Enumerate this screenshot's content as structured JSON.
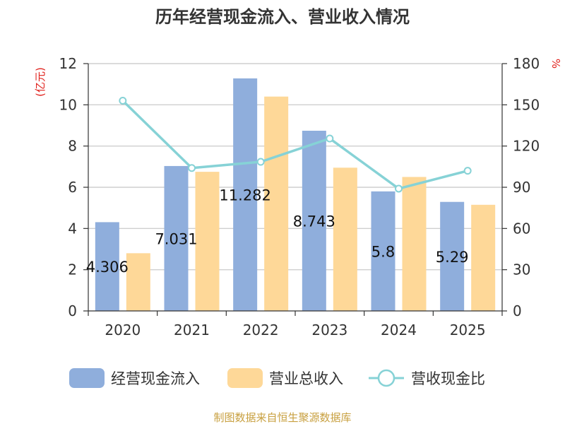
{
  "title": "历年经营现金流入、营业收入情况",
  "source": "制图数据来自恒生聚源数据库",
  "colors": {
    "bar1": "#8faedc",
    "bar2": "#fed898",
    "line": "#86d2d6",
    "unit": "#e0201b",
    "source": "#c8a040"
  },
  "chart_data": {
    "type": "bar",
    "categories": [
      "2020",
      "2021",
      "2022",
      "2023",
      "2024",
      "2025"
    ],
    "series": [
      {
        "name": "经营现金流入",
        "type": "bar",
        "axis": "left",
        "values": [
          4.306,
          7.031,
          11.282,
          8.743,
          5.8,
          5.29
        ]
      },
      {
        "name": "营业总收入",
        "type": "bar",
        "axis": "left",
        "values": [
          2.8,
          6.75,
          10.4,
          6.95,
          6.5,
          5.15
        ]
      },
      {
        "name": "营收现金比",
        "type": "line",
        "axis": "right",
        "values": [
          153.0,
          104.0,
          108.5,
          125.5,
          89.0,
          102.0
        ]
      }
    ],
    "data_labels": [
      "4.306",
      "7.031",
      "11.282",
      "8.743",
      "5.8",
      "5.29"
    ],
    "y_left": {
      "label": "(亿元)",
      "min": 0,
      "max": 12,
      "ticks": [
        "0",
        "2",
        "4",
        "6",
        "8",
        "10",
        "12"
      ]
    },
    "y_right": {
      "label": "%",
      "min": 0,
      "max": 180,
      "ticks": [
        "0",
        "30",
        "60",
        "90",
        "120",
        "150",
        "180"
      ]
    },
    "grid": true,
    "legend_position": "bottom"
  }
}
